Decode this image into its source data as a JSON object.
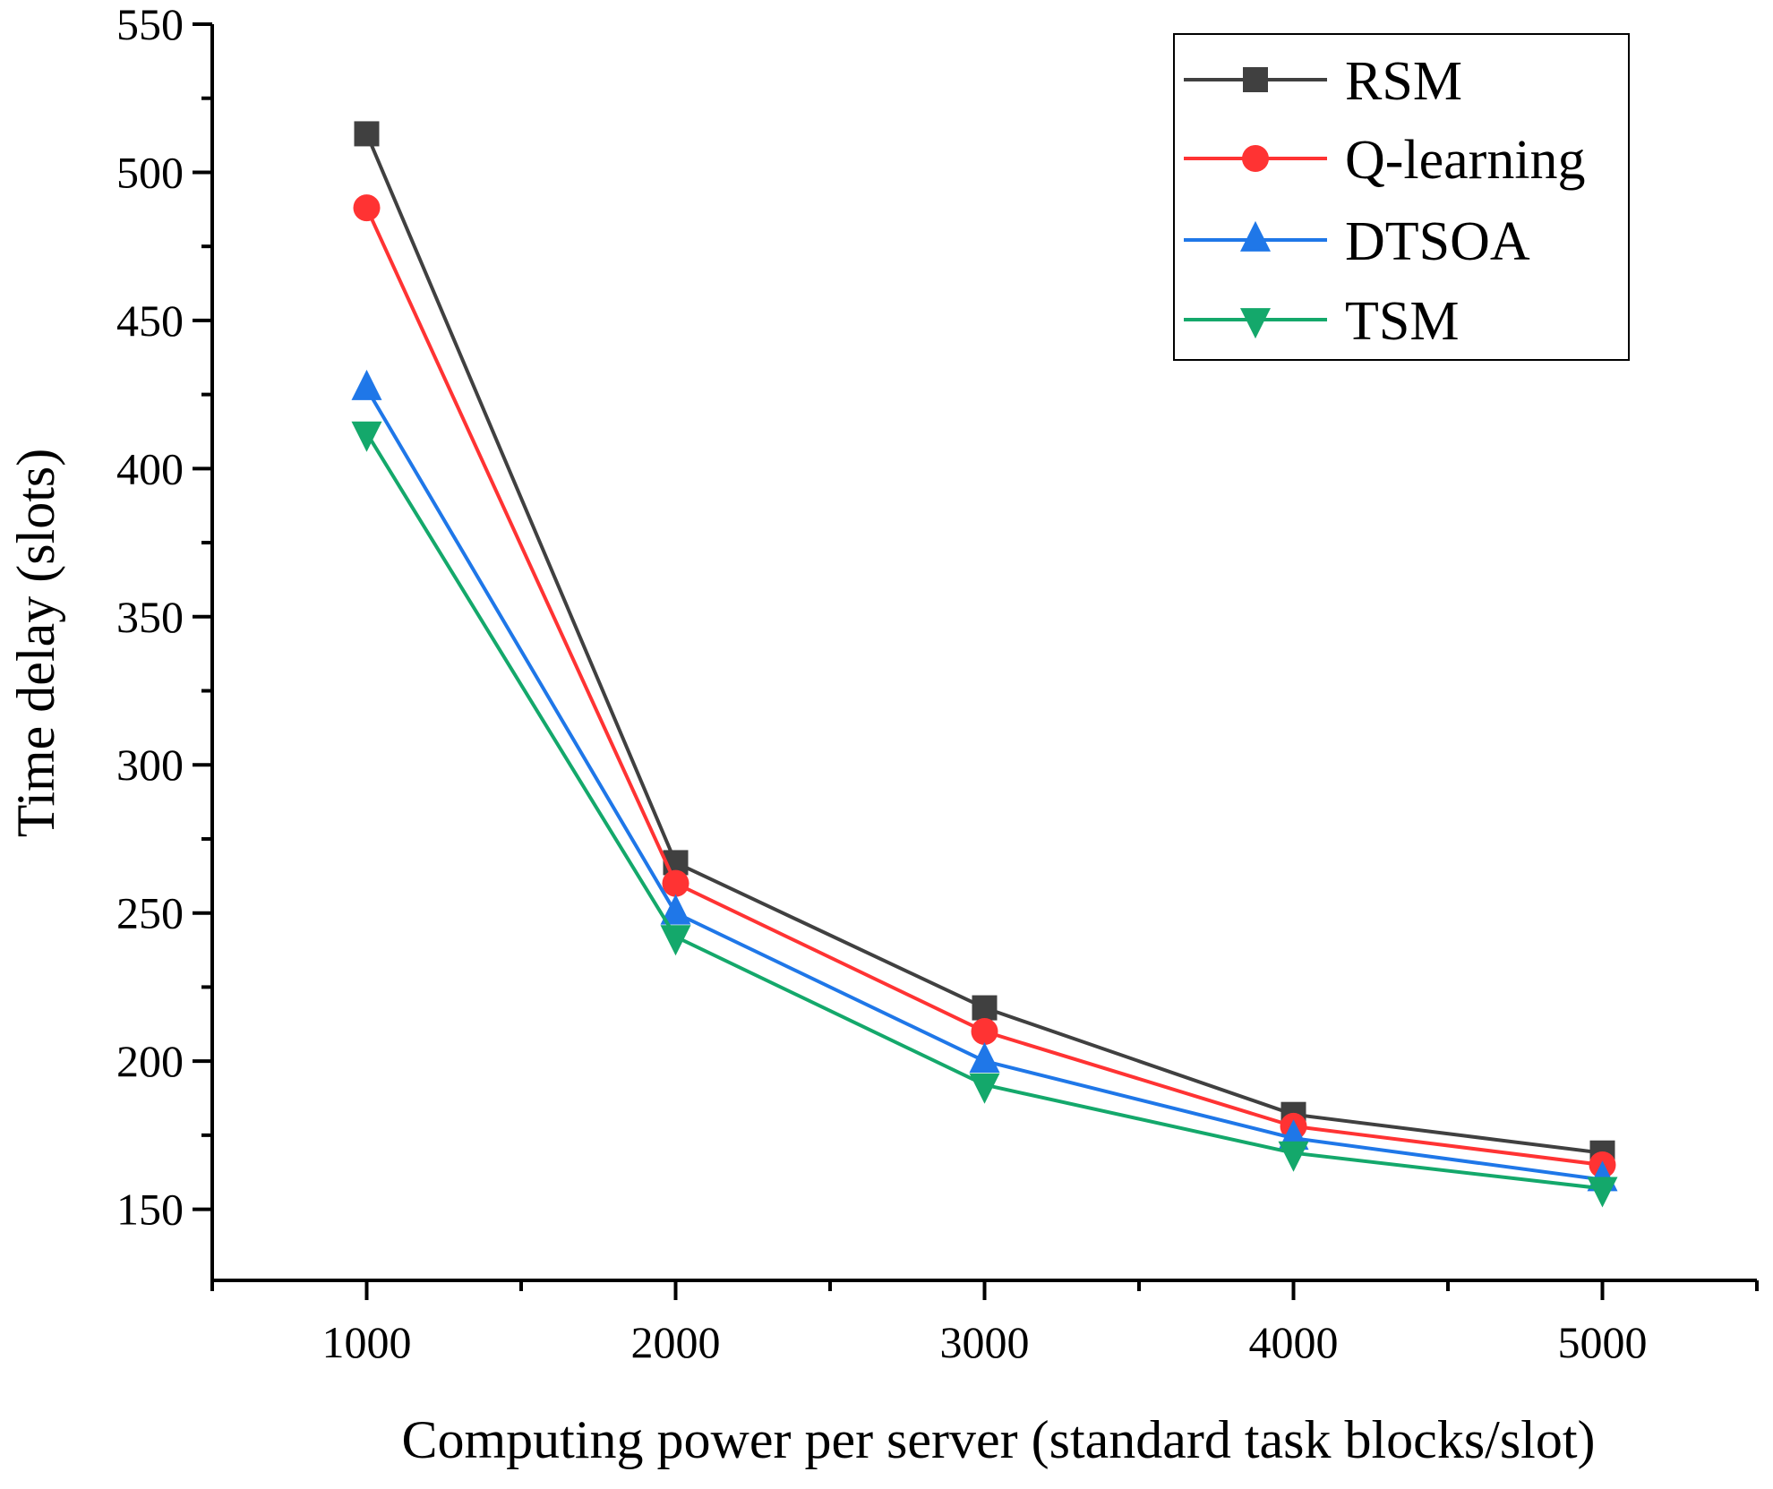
{
  "chart_data": {
    "type": "line",
    "title": "",
    "xlabel": "Computing power per server (standard task blocks/slot)",
    "ylabel": "Time delay (slots)",
    "x": [
      1000,
      2000,
      3000,
      4000,
      5000
    ],
    "xticks": [
      "1000",
      "2000",
      "3000",
      "4000",
      "5000"
    ],
    "yticks": [
      "150",
      "200",
      "250",
      "300",
      "350",
      "400",
      "450",
      "500",
      "550"
    ],
    "xlim": [
      500,
      5500
    ],
    "ylim": [
      126,
      550
    ],
    "grid": false,
    "legend_position": "top-right",
    "series": [
      {
        "name": "RSM",
        "marker": "square",
        "color": "#404040",
        "values": [
          513,
          267,
          218,
          182,
          169
        ]
      },
      {
        "name": "Q-learning",
        "marker": "circle",
        "color": "#ff3333",
        "values": [
          488,
          260,
          210,
          178,
          165
        ]
      },
      {
        "name": "DTSOA",
        "marker": "triangle-up",
        "color": "#1f77e8",
        "values": [
          427,
          250,
          200,
          174,
          160
        ]
      },
      {
        "name": "TSM",
        "marker": "triangle-down",
        "color": "#14a86b",
        "values": [
          412,
          242,
          192,
          169,
          157
        ]
      }
    ]
  }
}
